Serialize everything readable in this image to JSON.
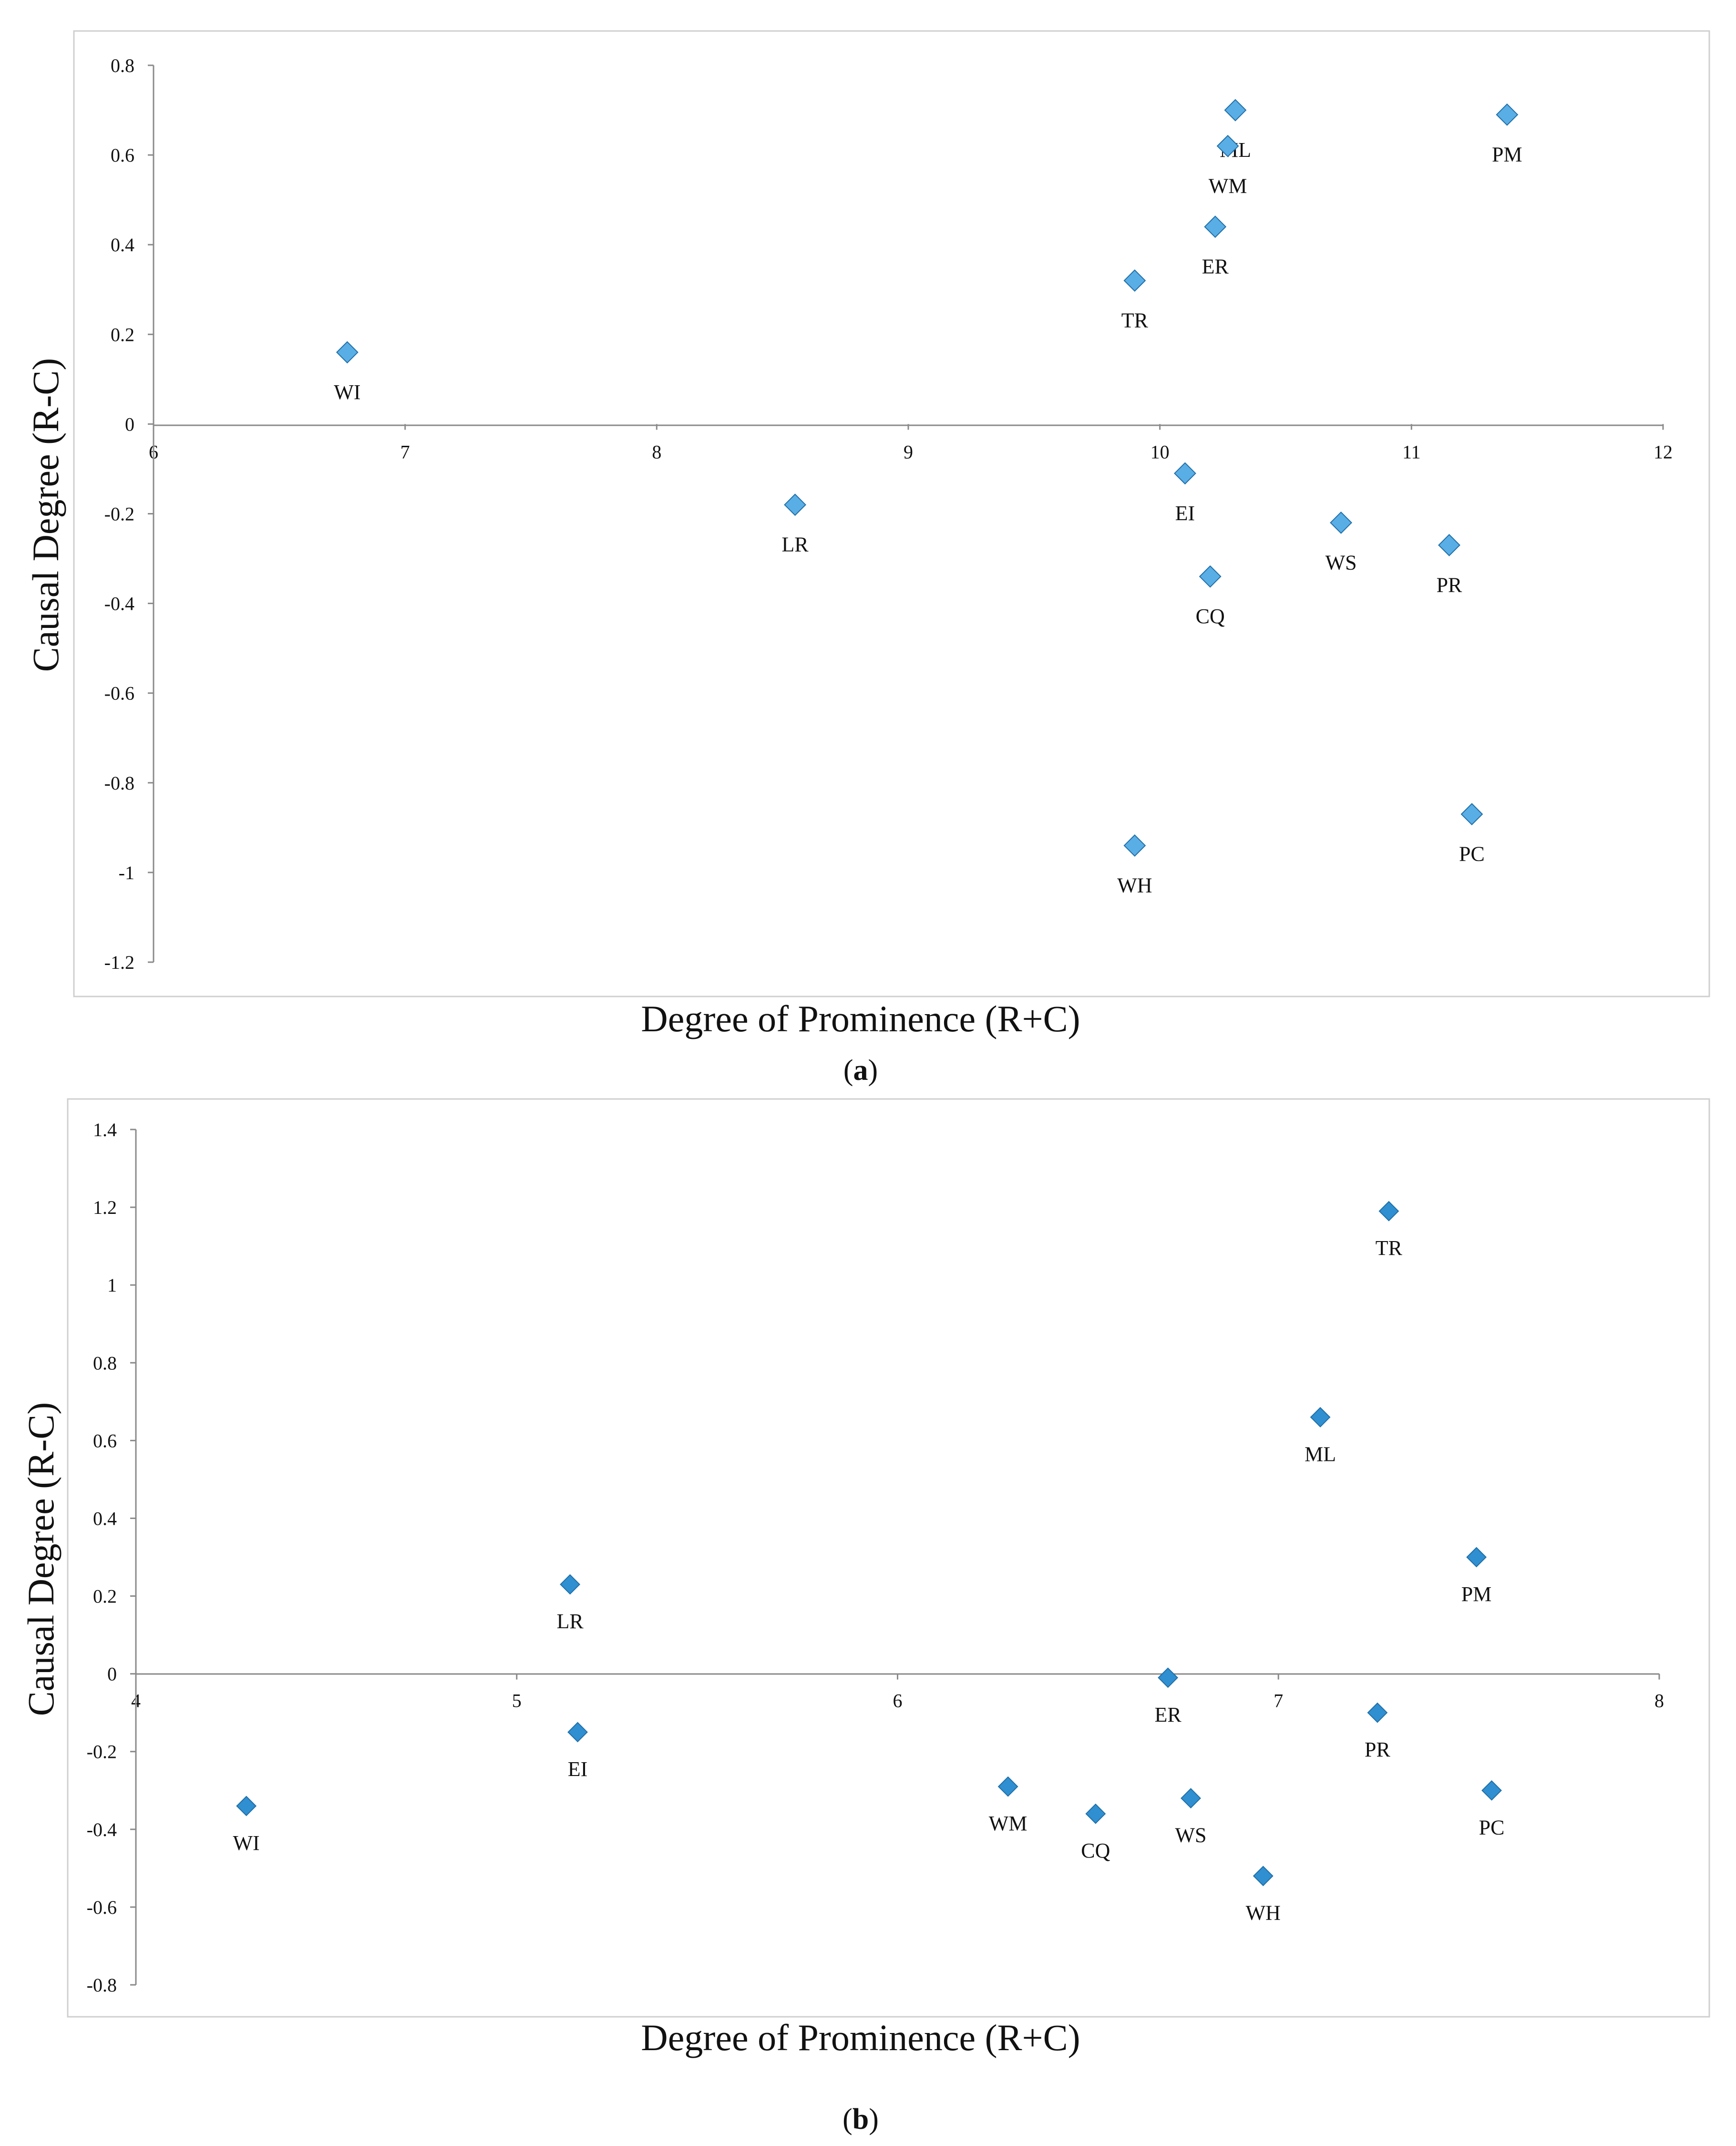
{
  "chart_data": [
    {
      "type": "scatter",
      "caption": "(a)",
      "caption_letter": "a",
      "xlabel": "Degree of Prominence (R+C)",
      "ylabel": "Causal Degree (R-C)",
      "xlim": [
        6,
        12
      ],
      "ylim": [
        -1.2,
        0.8
      ],
      "xticks": [
        "6",
        "7",
        "8",
        "9",
        "10",
        "11",
        "12"
      ],
      "yticks": [
        "0.8",
        "0.6",
        "0.4",
        "0.2",
        "0",
        "-0.2",
        "-0.4",
        "-0.6",
        "-0.8",
        "-1",
        "-1.2"
      ],
      "grid": false,
      "marker_color": "#5aaee6",
      "points": [
        {
          "label": "WI",
          "x": 6.77,
          "y": 0.16
        },
        {
          "label": "LR",
          "x": 8.55,
          "y": -0.18
        },
        {
          "label": "TR",
          "x": 9.9,
          "y": 0.32
        },
        {
          "label": "ML",
          "x": 10.3,
          "y": 0.7
        },
        {
          "label": "WM",
          "x": 10.27,
          "y": 0.62
        },
        {
          "label": "ER",
          "x": 10.22,
          "y": 0.44
        },
        {
          "label": "PM",
          "x": 11.38,
          "y": 0.69
        },
        {
          "label": "EI",
          "x": 10.1,
          "y": -0.11
        },
        {
          "label": "CQ",
          "x": 10.2,
          "y": -0.34
        },
        {
          "label": "WS",
          "x": 10.72,
          "y": -0.22
        },
        {
          "label": "PR",
          "x": 11.15,
          "y": -0.27
        },
        {
          "label": "WH",
          "x": 9.9,
          "y": -0.94
        },
        {
          "label": "PC",
          "x": 11.24,
          "y": -0.87
        }
      ]
    },
    {
      "type": "scatter",
      "caption": "(b)",
      "caption_letter": "b",
      "xlabel": "Degree of Prominence (R+C)",
      "ylabel": "Causal Degree (R-C)",
      "xlim": [
        4,
        8
      ],
      "ylim": [
        -0.8,
        1.4
      ],
      "xticks": [
        "4",
        "5",
        "6",
        "7",
        "8"
      ],
      "yticks": [
        "1.4",
        "1.2",
        "1",
        "0.8",
        "0.6",
        "0.4",
        "0.2",
        "0",
        "-0.2",
        "-0.4",
        "-0.6",
        "-0.8"
      ],
      "grid": false,
      "marker_color": "#2f8fd0",
      "points": [
        {
          "label": "WI",
          "x": 4.29,
          "y": -0.34
        },
        {
          "label": "LR",
          "x": 5.14,
          "y": 0.23
        },
        {
          "label": "EI",
          "x": 5.16,
          "y": -0.15
        },
        {
          "label": "WM",
          "x": 6.29,
          "y": -0.29
        },
        {
          "label": "CQ",
          "x": 6.52,
          "y": -0.36
        },
        {
          "label": "WS",
          "x": 6.77,
          "y": -0.32
        },
        {
          "label": "ER",
          "x": 6.71,
          "y": -0.01
        },
        {
          "label": "WH",
          "x": 6.96,
          "y": -0.52
        },
        {
          "label": "ML",
          "x": 7.11,
          "y": 0.66
        },
        {
          "label": "TR",
          "x": 7.29,
          "y": 1.19
        },
        {
          "label": "PR",
          "x": 7.26,
          "y": -0.1
        },
        {
          "label": "PM",
          "x": 7.52,
          "y": 0.3
        },
        {
          "label": "PC",
          "x": 7.56,
          "y": -0.3
        }
      ]
    }
  ]
}
